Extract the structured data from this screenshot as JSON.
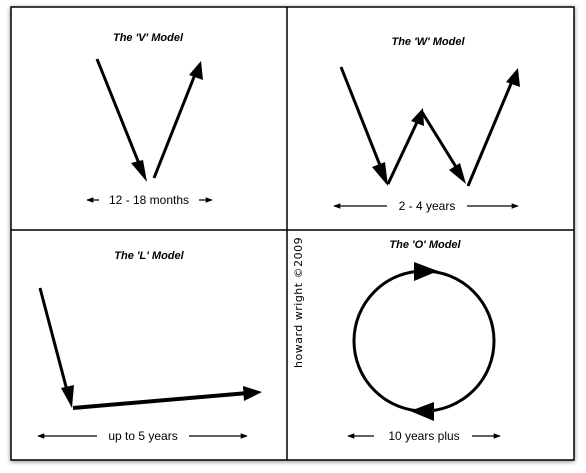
{
  "panels": {
    "v": {
      "title": "The 'V' Model",
      "range": "12 - 18 months"
    },
    "w": {
      "title": "The 'W' Model",
      "range": "2 - 4 years"
    },
    "l": {
      "title": "The 'L' Model",
      "range": "up to 5 years"
    },
    "o": {
      "title": "The 'O' Model",
      "range": "10 years plus"
    }
  },
  "signature": "howard wright ©2009",
  "colors": {
    "stroke": "#000000",
    "background": "#ffffff"
  }
}
